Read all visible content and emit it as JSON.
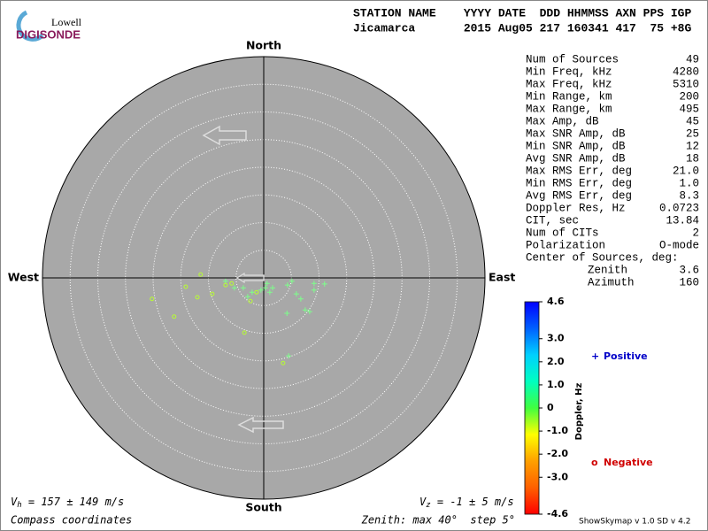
{
  "logo": {
    "line1": "Lowell",
    "line2": "DIGISONDE"
  },
  "header": {
    "labels": "STATION NAME    YYYY DATE  DDD HHMMSS AXN PPS IGP",
    "values": "Jicamarca       2015 Aug05 217 160341 417  75 +8G"
  },
  "stats": {
    "rows": [
      [
        "Num of Sources",
        "49"
      ],
      [
        "Min Freq, kHz",
        "4280"
      ],
      [
        "Max Freq, kHz",
        "5310"
      ],
      [
        "Min Range, km",
        "200"
      ],
      [
        "Max Range, km",
        "495"
      ],
      [
        "Max Amp, dB",
        "45"
      ],
      [
        "Max SNR Amp, dB",
        "25"
      ],
      [
        "Min SNR Amp, dB",
        "12"
      ],
      [
        "Avg SNR Amp, dB",
        "18"
      ],
      [
        "Max RMS Err, deg",
        "21.0"
      ],
      [
        "Min RMS Err, deg",
        "1.0"
      ],
      [
        "Avg RMS Err, deg",
        "8.3"
      ],
      [
        "Doppler Res, Hz",
        "0.0723"
      ],
      [
        "CIT, sec",
        "13.84"
      ],
      [
        "Num of CITs",
        "2"
      ],
      [
        "Polarization",
        "O-mode"
      ]
    ],
    "center_title": "Center of Sources, deg:",
    "center_rows": [
      [
        "Zenith",
        "3.6"
      ],
      [
        "Azimuth",
        "160"
      ]
    ]
  },
  "chart_data": {
    "type": "skymap",
    "xlim": [
      -40,
      40
    ],
    "ylim": [
      -40,
      40
    ],
    "rings": [
      5,
      10,
      15,
      20,
      25,
      30,
      35
    ],
    "compass": {
      "north": "North",
      "south": "South",
      "east": "East",
      "west": "West"
    },
    "series": [
      {
        "name": "Positive",
        "marker": "+",
        "color": "#7dff8a",
        "legend_color": "#0000c8",
        "x": [
          -6.9,
          -5.3,
          -3.7,
          -2.9,
          -2.1,
          -0.5,
          0.3,
          0.6,
          1.1,
          1.6,
          4.3,
          5.1,
          5.9,
          6.7,
          7.5,
          8.3,
          9.1,
          9.1,
          11.0,
          4.2,
          4.5
        ],
        "y": [
          -0.6,
          -1.8,
          -1.8,
          -3.4,
          -2.6,
          -2.2,
          -1.8,
          -1.0,
          -2.6,
          -1.8,
          -1.3,
          -0.6,
          -2.9,
          -3.8,
          -5.8,
          -6.1,
          -1.0,
          -2.2,
          -1.1,
          -6.4,
          -14.1
        ]
      },
      {
        "name": "Negative",
        "marker": "o",
        "color": "#b8ff30",
        "legend_color": "#d00000",
        "x": [
          -20.2,
          -16.2,
          -14.1,
          -12.0,
          -11.4,
          -9.3,
          -3.5,
          3.5,
          -6.9,
          -5.8,
          -2.4,
          -1.3
        ],
        "y": [
          -3.8,
          -7.0,
          -1.6,
          -3.5,
          0.6,
          -2.9,
          -9.9,
          -15.4,
          -1.3,
          -1.0,
          -4.2,
          -2.6
        ]
      }
    ]
  },
  "colorbar": {
    "label": "Doppler, Hz",
    "lim": [
      -4.6,
      4.6
    ],
    "ticks": [
      4.6,
      {
        "value": 3,
        "label": "3.0"
      },
      {
        "value": 2,
        "label": "2.0"
      },
      {
        "value": 1,
        "label": "1.0"
      },
      0,
      {
        "value": -1,
        "label": "-1.0"
      },
      {
        "value": -2,
        "label": "-2.0"
      },
      {
        "value": -3,
        "label": "-3.0"
      },
      -4.6
    ],
    "colors": [
      "#ff0000",
      "#ff6000",
      "#ffa000",
      "#ffff00",
      "#40ff40",
      "#00ffc0",
      "#00d0ff",
      "#0060ff",
      "#0000ff"
    ]
  },
  "footer": {
    "vh_sym": "V",
    "vh_sub": "h",
    "vh_text": " = 157 ± 149 m/s",
    "vz_sym": "V",
    "vz_sub": "z",
    "vz_text": " = -1 ± 5 m/s",
    "coords": "Compass coordinates",
    "zenith": "Zenith: max 40°  step 5°",
    "version": "ShowSkymap v 1.0  SD v 4.2"
  }
}
